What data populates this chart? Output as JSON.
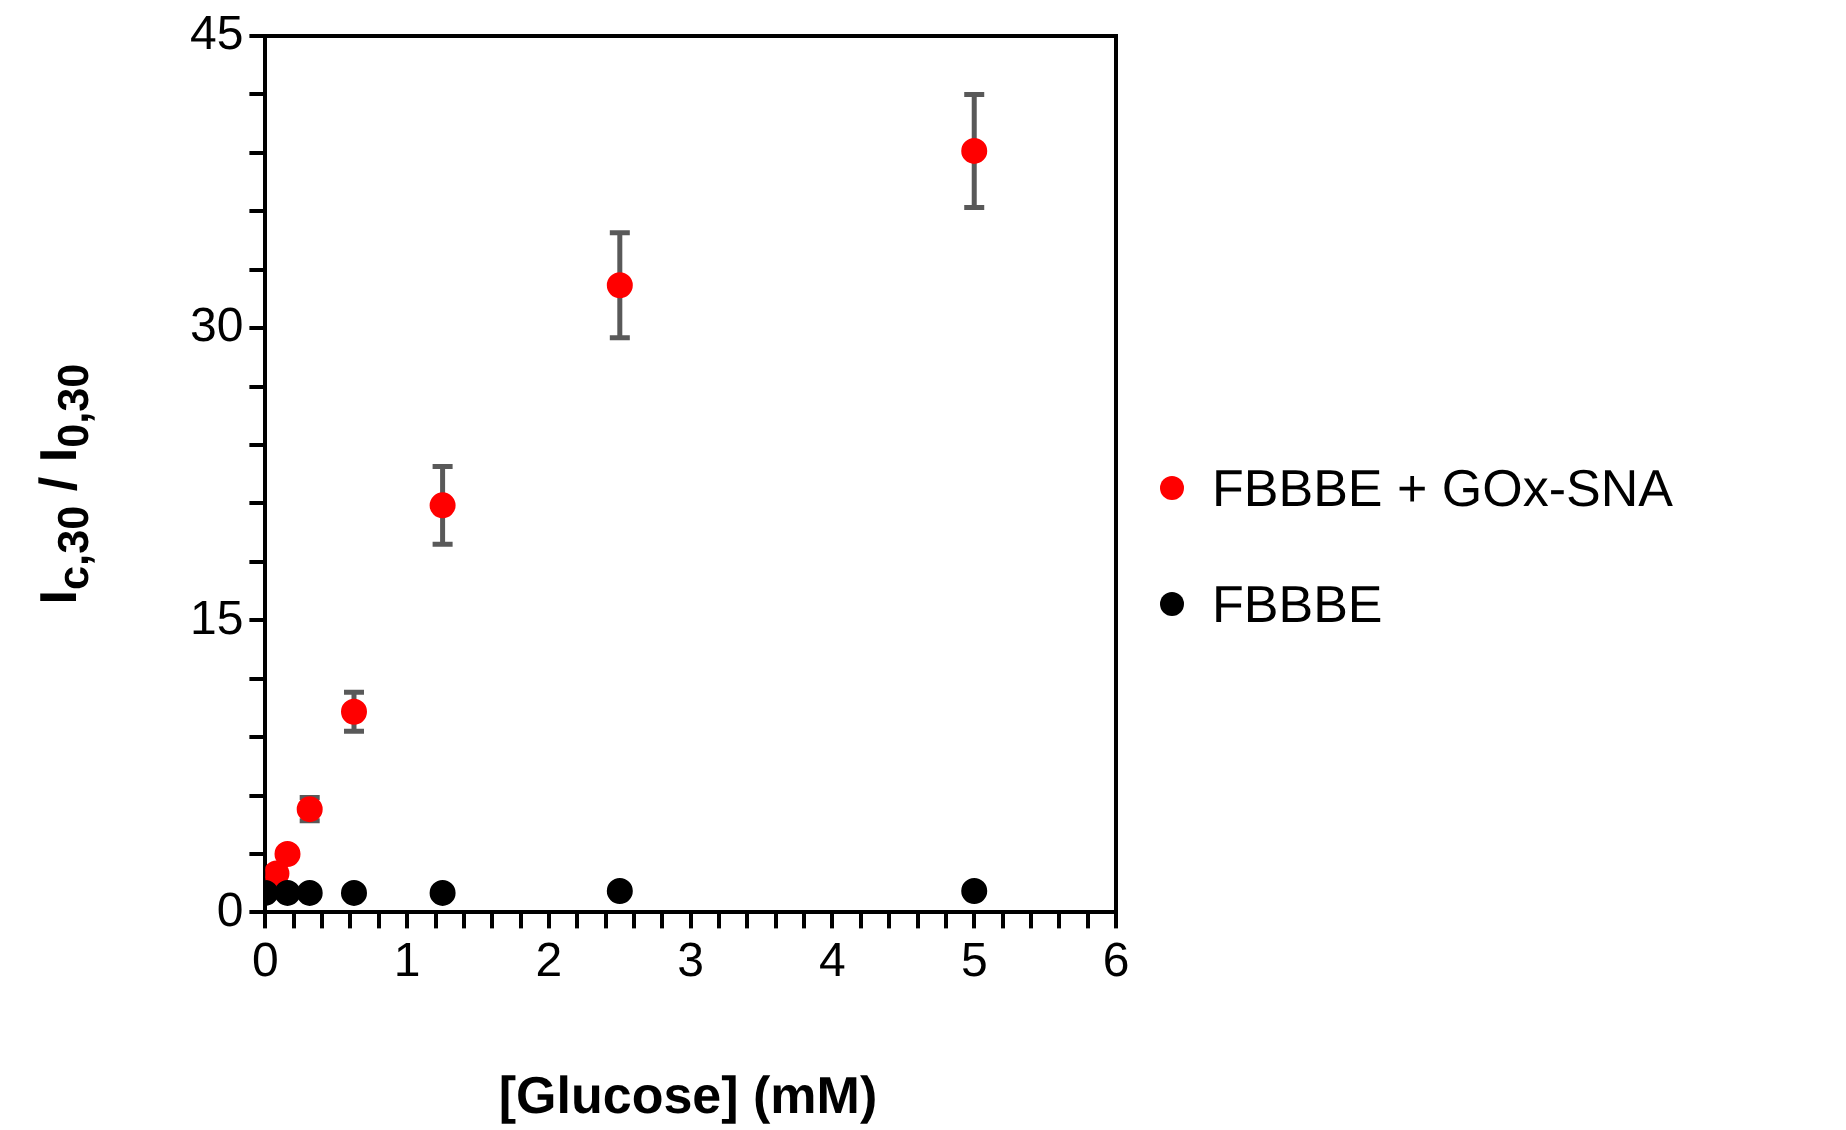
{
  "chart_data": {
    "type": "scatter",
    "xlabel": "[Glucose] (mM)",
    "ylabel": "I$_{c,30}$ / I$_{0,30}$",
    "xlim": [
      0,
      6
    ],
    "xticks": [
      0,
      {
        "value": 0.2,
        "label": null
      },
      {
        "value": 0.4,
        "label": null
      },
      {
        "value": 0.6,
        "label": null
      },
      {
        "value": 0.8,
        "label": null
      },
      1,
      {
        "value": 1.2,
        "label": null
      },
      {
        "value": 1.4,
        "label": null
      },
      {
        "value": 1.6,
        "label": null
      },
      {
        "value": 1.8,
        "label": null
      },
      2,
      {
        "value": 2.2,
        "label": null
      },
      {
        "value": 2.4,
        "label": null
      },
      {
        "value": 2.6,
        "label": null
      },
      {
        "value": 2.8,
        "label": null
      },
      3,
      {
        "value": 3.2,
        "label": null
      },
      {
        "value": 3.4,
        "label": null
      },
      {
        "value": 3.6,
        "label": null
      },
      {
        "value": 3.8,
        "label": null
      },
      4,
      {
        "value": 4.2,
        "label": null
      },
      {
        "value": 4.4,
        "label": null
      },
      {
        "value": 4.6,
        "label": null
      },
      {
        "value": 4.8,
        "label": null
      },
      5,
      {
        "value": 5.2,
        "label": null
      },
      {
        "value": 5.4,
        "label": null
      },
      {
        "value": 5.6,
        "label": null
      },
      {
        "value": 5.8,
        "label": null
      },
      6
    ],
    "ylim": [
      0,
      45
    ],
    "yticks": [
      0,
      {
        "value": 3,
        "label": null
      },
      {
        "value": 6,
        "label": null
      },
      {
        "value": 9,
        "label": null
      },
      {
        "value": 12,
        "label": null
      },
      15,
      {
        "value": 18,
        "label": null
      },
      {
        "value": 21,
        "label": null
      },
      {
        "value": 24,
        "label": null
      },
      {
        "value": 27,
        "label": null
      },
      30,
      {
        "value": 33,
        "label": null
      },
      {
        "value": 36,
        "label": null
      },
      {
        "value": 39,
        "label": null
      },
      {
        "value": 42,
        "label": null
      },
      45
    ],
    "grid": false,
    "legend": "right",
    "marker": "circle",
    "series": [
      {
        "name": "FBBBE + GOx-SNA",
        "color": "#ff0000",
        "x": [
          0.078,
          0.156,
          0.3125,
          0.625,
          1.25,
          2.5,
          5
        ],
        "values": [
          2.0,
          3.0,
          5.3,
          10.3,
          20.9,
          32.2,
          39.1
        ],
        "errors": [
          null,
          null,
          0.6,
          1.0,
          2.0,
          2.7,
          2.9
        ]
      },
      {
        "name": "FBBBE",
        "color": "#000000",
        "x": [
          0,
          0.156,
          0.3125,
          0.625,
          1.25,
          2.5,
          5
        ],
        "values": [
          1.0,
          1.0,
          1.0,
          1.0,
          1.0,
          1.1,
          1.1
        ]
      }
    ]
  }
}
